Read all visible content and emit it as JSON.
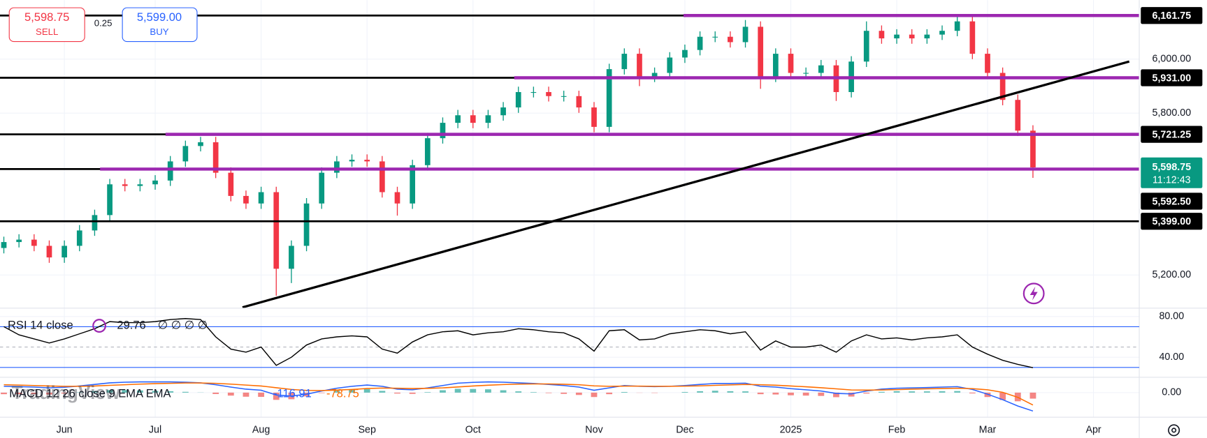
{
  "header": {
    "sell_price": "5,598.75",
    "sell_label": "SELL",
    "spread": "0.25",
    "buy_price": "5,599.00",
    "buy_label": "BUY"
  },
  "watermark": "TradingView",
  "chart_data": [
    {
      "type": "candlestick",
      "categories": [
        null,
        null,
        null,
        null,
        "Jun",
        null,
        null,
        null,
        null,
        null,
        "Jul",
        null,
        null,
        null,
        null,
        null,
        null,
        "Aug",
        null,
        null,
        null,
        null,
        null,
        null,
        "Sep",
        null,
        null,
        null,
        null,
        null,
        null,
        "Oct",
        null,
        null,
        null,
        null,
        null,
        null,
        null,
        "Nov",
        null,
        null,
        null,
        null,
        null,
        "Dec",
        null,
        null,
        null,
        null,
        null,
        null,
        "2025",
        null,
        null,
        null,
        null,
        null,
        null,
        "Feb",
        null,
        null,
        null,
        null,
        null,
        "Mar",
        null,
        null,
        null,
        null,
        null,
        null,
        "Apr",
        null,
        null,
        null
      ],
      "open": [
        5300,
        5322,
        5331,
        5308,
        5265,
        5308,
        5365,
        5422,
        5536,
        5530,
        5536,
        5550,
        5621,
        5678,
        5692,
        5579,
        5493,
        5465,
        5507,
        5223,
        5308,
        5465,
        5579,
        5621,
        5627,
        5621,
        5507,
        5465,
        5607,
        5707,
        5764,
        5792,
        5764,
        5792,
        5821,
        5878,
        5878,
        5863,
        5863,
        5821,
        5749,
        5963,
        6020,
        5935,
        5949,
        6006,
        6034,
        6083,
        6083,
        6063,
        6120,
        5935,
        6020,
        5949,
        5949,
        5977,
        5878,
        5991,
        6105,
        6077,
        6091,
        6077,
        6091,
        6105,
        6140,
        6020,
        5949,
        5849,
        5735,
        null,
        null,
        null,
        null,
        null,
        null,
        null
      ],
      "high": [
        5342,
        5351,
        5351,
        5328,
        5328,
        5385,
        5442,
        5556,
        5556,
        5556,
        5570,
        5641,
        5698,
        5712,
        5712,
        5599,
        5513,
        5527,
        5527,
        5328,
        5485,
        5599,
        5641,
        5647,
        5647,
        5641,
        5527,
        5627,
        5727,
        5784,
        5812,
        5812,
        5812,
        5841,
        5898,
        5898,
        5898,
        5883,
        5883,
        5841,
        5983,
        6040,
        6040,
        5969,
        6026,
        6054,
        6103,
        6103,
        6103,
        6145,
        6140,
        6040,
        6040,
        5969,
        5997,
        5997,
        6011,
        6140,
        6125,
        6111,
        6111,
        6111,
        6125,
        6160,
        6160,
        6040,
        5969,
        5869,
        5755,
        null,
        null,
        null,
        null,
        null,
        null,
        null
      ],
      "low": [
        5280,
        5302,
        5288,
        5245,
        5245,
        5288,
        5345,
        5402,
        5510,
        5510,
        5516,
        5530,
        5601,
        5658,
        5559,
        5473,
        5445,
        5445,
        5123,
        5170,
        5288,
        5445,
        5559,
        5601,
        5601,
        5487,
        5420,
        5445,
        5587,
        5687,
        5744,
        5744,
        5744,
        5772,
        5801,
        5858,
        5843,
        5843,
        5801,
        5729,
        5729,
        5943,
        5900,
        5915,
        5929,
        5986,
        6014,
        6063,
        6043,
        6043,
        5890,
        5915,
        5929,
        5929,
        5929,
        5845,
        5858,
        5971,
        6057,
        6057,
        6057,
        6057,
        6071,
        6085,
        6000,
        5929,
        5829,
        5715,
        5560,
        null,
        null,
        null,
        null,
        null,
        null,
        null
      ],
      "close": [
        5322,
        5331,
        5308,
        5265,
        5308,
        5365,
        5422,
        5536,
        5530,
        5536,
        5550,
        5621,
        5678,
        5692,
        5579,
        5493,
        5465,
        5507,
        5223,
        5308,
        5465,
        5579,
        5621,
        5627,
        5621,
        5507,
        5465,
        5607,
        5707,
        5764,
        5792,
        5764,
        5792,
        5821,
        5878,
        5878,
        5863,
        5863,
        5821,
        5749,
        5963,
        6020,
        5935,
        5949,
        6006,
        6034,
        6083,
        6083,
        6063,
        6120,
        5935,
        6020,
        5949,
        5949,
        5977,
        5878,
        5991,
        6105,
        6077,
        6091,
        6077,
        6091,
        6105,
        6140,
        6020,
        5949,
        5849,
        5735,
        5598.75,
        null,
        null,
        null,
        null,
        null,
        null,
        null
      ],
      "up_color": "#089981",
      "down_color": "#f23645",
      "ylim": [
        5080,
        6219
      ],
      "yticks": [
        {
          "value": 6000,
          "label": "6,000.00"
        },
        {
          "value": 5800,
          "label": "5,800.00"
        },
        {
          "value": 5200,
          "label": "5,200.00"
        }
      ],
      "grid": true,
      "levels": [
        {
          "value": 6161.75,
          "label": "6,161.75"
        },
        {
          "value": 5931,
          "label": "5,931.00"
        },
        {
          "value": 5721.25,
          "label": "5,721.25"
        },
        {
          "value": 5592.5,
          "label": "5,592.50"
        },
        {
          "value": 5399,
          "label": "5,399.00"
        }
      ],
      "level_color": "#000000",
      "zone_color": "#9c27b0",
      "last_price": {
        "value": 5598.75,
        "label": "5,598.75"
      },
      "countdown": "11:12:43"
    },
    {
      "type": "line",
      "title": "RSI 14 close",
      "na_values": "∅ ∅ ∅ ∅",
      "series": [
        {
          "color": "#000000",
          "values": [
            70,
            62,
            58,
            54,
            58,
            63,
            68,
            75,
            74,
            74,
            75,
            77,
            78,
            77,
            60,
            48,
            45,
            50,
            32,
            40,
            52,
            58,
            60,
            61,
            60,
            48,
            44,
            55,
            62,
            65,
            66,
            62,
            64,
            65,
            68,
            67,
            65,
            64,
            58,
            46,
            66,
            67,
            57,
            58,
            63,
            65,
            67,
            66,
            63,
            65,
            47,
            56,
            50,
            50,
            52,
            45,
            56,
            62,
            58,
            59,
            57,
            59,
            60,
            62,
            50,
            43,
            37,
            33,
            29.76,
            null,
            null,
            null,
            null,
            null,
            null,
            null
          ]
        }
      ],
      "ylim": [
        21.1,
        87.5
      ],
      "yticks": [
        {
          "value": 80,
          "label": "80.00"
        },
        {
          "value": 40,
          "label": "40.00"
        }
      ],
      "bands": [
        70,
        30
      ],
      "band_color": "#2962ff",
      "midline": 50
    },
    {
      "type": "macd",
      "title": "MACD 12 26 close 9 EMA EMA",
      "series": [
        {
          "color": "#2962ff",
          "values": [
            40,
            38,
            35,
            30,
            34,
            42,
            52,
            62,
            66,
            68,
            68,
            68,
            66,
            62,
            50,
            35,
            22,
            15,
            -15,
            -22,
            -10,
            10,
            28,
            40,
            48,
            40,
            22,
            18,
            30,
            45,
            60,
            65,
            68,
            66,
            62,
            58,
            52,
            45,
            35,
            15,
            30,
            45,
            40,
            38,
            40,
            45,
            52,
            58,
            58,
            60,
            40,
            35,
            25,
            18,
            10,
            -5,
            -8,
            10,
            22,
            28,
            30,
            32,
            35,
            38,
            20,
            -10,
            -45,
            -85,
            -116.91,
            null,
            null,
            null,
            null,
            null,
            null,
            null
          ]
        },
        {
          "color": "#ff6d00",
          "values": [
            50,
            48,
            45,
            42,
            40,
            40,
            42,
            46,
            50,
            54,
            57,
            59,
            61,
            61,
            59,
            54,
            48,
            42,
            31,
            20,
            14,
            13,
            16,
            20,
            26,
            29,
            28,
            26,
            27,
            30,
            36,
            42,
            47,
            51,
            54,
            55,
            55,
            53,
            50,
            43,
            40,
            41,
            41,
            40,
            40,
            41,
            43,
            46,
            49,
            52,
            50,
            47,
            42,
            37,
            31,
            24,
            17,
            16,
            17,
            19,
            22,
            24,
            26,
            28,
            25,
            18,
            2,
            -30,
            -78.75,
            null,
            null,
            null,
            null,
            null,
            null,
            null
          ]
        }
      ],
      "histogram": [
        -10,
        -10,
        -10,
        -12,
        -6,
        2,
        10,
        16,
        16,
        14,
        11,
        9,
        5,
        1,
        -9,
        -19,
        -26,
        -27,
        -46,
        -42,
        -24,
        -3,
        12,
        20,
        22,
        11,
        -6,
        -8,
        3,
        15,
        24,
        23,
        21,
        15,
        8,
        3,
        -3,
        -8,
        -15,
        -28,
        -10,
        4,
        -1,
        -2,
        0,
        4,
        9,
        12,
        9,
        8,
        -10,
        -12,
        -17,
        -19,
        -21,
        -29,
        -25,
        -6,
        5,
        9,
        8,
        8,
        9,
        10,
        -5,
        -28,
        -47,
        -55,
        -38.16,
        null,
        null,
        null,
        null,
        null,
        null,
        null
      ],
      "histogram_colors": [
        "#26a69a",
        "#ef5350"
      ],
      "ylim": [
        -146.3,
        92.7
      ],
      "yticks": [
        {
          "value": 0,
          "label": "0.00"
        }
      ]
    }
  ]
}
